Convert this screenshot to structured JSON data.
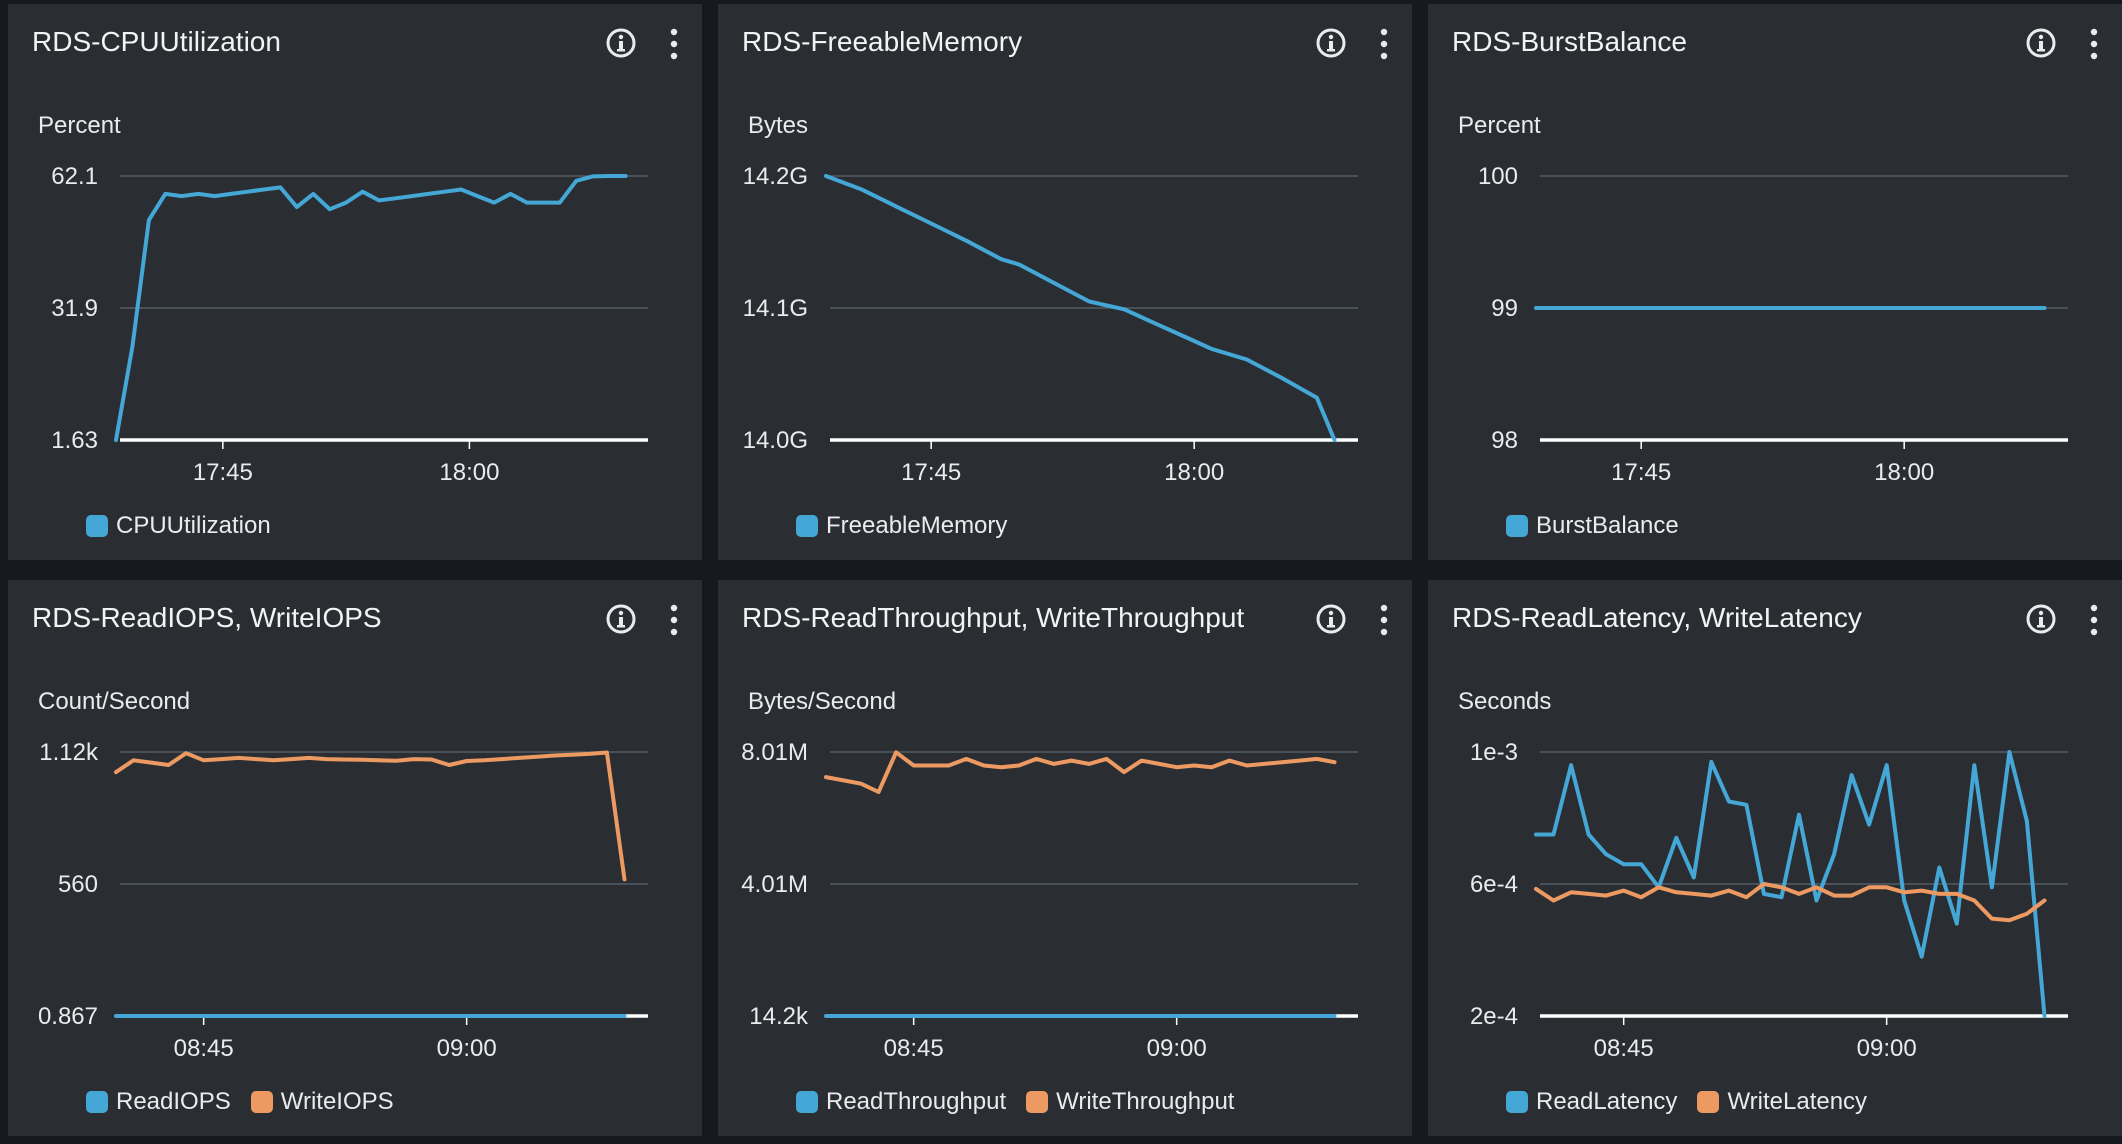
{
  "colors": {
    "background": "#16191f",
    "panel": "#2a2e33",
    "gridline": "#545b64",
    "axis": "#ffffff",
    "text": "#d5dbdb",
    "series_blue": "#44a7d6",
    "series_orange": "#ed9a62"
  },
  "icons": {
    "info": "info-circle-icon",
    "menu": "vertical-ellipsis-icon"
  },
  "chart_data": [
    {
      "type": "line",
      "title": "RDS-CPUUtilization",
      "ylabel": "Percent",
      "yticks": [
        "62.1",
        "31.9",
        "1.63"
      ],
      "ylim": [
        1.63,
        62.1
      ],
      "xlim": [
        0,
        32
      ],
      "xticks": [
        {
          "at": 6.5,
          "label": "17:45"
        },
        {
          "at": 21.5,
          "label": "18:00"
        }
      ],
      "series": [
        {
          "name": "CPUUtilization",
          "color": "#44a7d6",
          "x": [
            0,
            1,
            2,
            3,
            4,
            5,
            6,
            7,
            8,
            9,
            10,
            11,
            12,
            13,
            14,
            15,
            16,
            17,
            18,
            19,
            20,
            21,
            22,
            23,
            24,
            25,
            26,
            27,
            28,
            29,
            30,
            31
          ],
          "values": [
            1.63,
            23,
            52,
            58,
            57.5,
            58,
            57.5,
            58,
            58.5,
            59,
            59.5,
            55,
            58,
            54.5,
            56,
            58.5,
            56.5,
            57,
            57.5,
            58,
            58.5,
            59,
            57.5,
            56,
            58,
            56,
            56,
            56,
            61,
            62,
            62.1,
            62.1
          ]
        }
      ]
    },
    {
      "type": "line",
      "title": "RDS-FreeableMemory",
      "ylabel": "Bytes",
      "yticks": [
        "14.2G",
        "14.1G",
        "14.0G"
      ],
      "ylim": [
        14.0,
        14.2
      ],
      "xlim": [
        0,
        30
      ],
      "xticks": [
        {
          "at": 6,
          "label": "17:45"
        },
        {
          "at": 21,
          "label": "18:00"
        }
      ],
      "series": [
        {
          "name": "FreeableMemory",
          "color": "#44a7d6",
          "x": [
            0,
            2,
            4,
            6,
            8,
            10,
            11,
            13,
            15,
            17,
            19,
            21,
            22,
            24,
            26,
            28,
            29
          ],
          "values": [
            14.2,
            14.19,
            14.177,
            14.164,
            14.151,
            14.137,
            14.133,
            14.119,
            14.105,
            14.099,
            14.087,
            14.075,
            14.069,
            14.061,
            14.047,
            14.032,
            14.0
          ]
        }
      ]
    },
    {
      "type": "line",
      "title": "RDS-BurstBalance",
      "ylabel": "Percent",
      "yticks": [
        "100",
        "99",
        "98"
      ],
      "ylim": [
        98,
        100
      ],
      "xlim": [
        0,
        30
      ],
      "xticks": [
        {
          "at": 6,
          "label": "17:45"
        },
        {
          "at": 21,
          "label": "18:00"
        }
      ],
      "series": [
        {
          "name": "BurstBalance",
          "color": "#44a7d6",
          "x": [
            0,
            29
          ],
          "values": [
            99,
            99
          ]
        }
      ]
    },
    {
      "type": "line",
      "title": "RDS-ReadIOPS, WriteIOPS",
      "ylabel": "Count/Second",
      "yticks": [
        "1.12k",
        "560",
        "0.867"
      ],
      "ylim": [
        0.867,
        1120
      ],
      "xlim": [
        0,
        30
      ],
      "xticks": [
        {
          "at": 5,
          "label": "08:45"
        },
        {
          "at": 20,
          "label": "09:00"
        }
      ],
      "series": [
        {
          "name": "ReadIOPS",
          "color": "#44a7d6",
          "x": [
            0,
            29
          ],
          "values": [
            0.867,
            0.867
          ]
        },
        {
          "name": "WriteIOPS",
          "color": "#ed9a62",
          "x": [
            0,
            1,
            2,
            3,
            4,
            5,
            6,
            7,
            8,
            9,
            10,
            11,
            12,
            13,
            14,
            15,
            16,
            17,
            18,
            19,
            20,
            21,
            22,
            23,
            24,
            25,
            26,
            27,
            28,
            29
          ],
          "values": [
            1035,
            1085,
            1075,
            1065,
            1115,
            1085,
            1090,
            1095,
            1090,
            1085,
            1090,
            1095,
            1090,
            1088,
            1087,
            1085,
            1083,
            1090,
            1088,
            1065,
            1082,
            1085,
            1090,
            1095,
            1100,
            1105,
            1108,
            1112,
            1118,
            580
          ]
        }
      ]
    },
    {
      "type": "line",
      "title": "RDS-ReadThroughput, WriteThroughput",
      "ylabel": "Bytes/Second",
      "yticks": [
        "8.01M",
        "4.01M",
        "14.2k"
      ],
      "ylim": [
        0.0142,
        8.01
      ],
      "xlim": [
        0,
        30
      ],
      "xticks": [
        {
          "at": 5,
          "label": "08:45"
        },
        {
          "at": 20,
          "label": "09:00"
        }
      ],
      "series": [
        {
          "name": "ReadThroughput",
          "color": "#44a7d6",
          "x": [
            0,
            29
          ],
          "values": [
            0.0142,
            0.0142
          ]
        },
        {
          "name": "WriteThroughput",
          "color": "#ed9a62",
          "x": [
            0,
            1,
            2,
            3,
            4,
            5,
            6,
            7,
            8,
            9,
            10,
            11,
            12,
            13,
            14,
            15,
            16,
            17,
            18,
            19,
            20,
            21,
            22,
            23,
            24,
            25,
            26,
            27,
            28,
            29
          ],
          "values": [
            7.25,
            7.15,
            7.05,
            6.8,
            8.0,
            7.6,
            7.6,
            7.6,
            7.8,
            7.6,
            7.55,
            7.6,
            7.8,
            7.65,
            7.75,
            7.65,
            7.8,
            7.4,
            7.75,
            7.65,
            7.55,
            7.6,
            7.55,
            7.75,
            7.6,
            7.65,
            7.7,
            7.75,
            7.8,
            7.7
          ]
        }
      ]
    },
    {
      "type": "line",
      "title": "RDS-ReadLatency, WriteLatency",
      "ylabel": "Seconds",
      "yticks": [
        "1e-3",
        "6e-4",
        "2e-4"
      ],
      "ylim": [
        0.0002,
        0.001
      ],
      "xlim": [
        0,
        30
      ],
      "xticks": [
        {
          "at": 5,
          "label": "08:45"
        },
        {
          "at": 20,
          "label": "09:00"
        }
      ],
      "series": [
        {
          "name": "ReadLatency",
          "color": "#44a7d6",
          "x": [
            0,
            1,
            2,
            3,
            4,
            5,
            6,
            7,
            8,
            9,
            10,
            11,
            12,
            13,
            14,
            15,
            16,
            17,
            18,
            19,
            20,
            21,
            22,
            23,
            24,
            25,
            26,
            27,
            28,
            29
          ],
          "values": [
            0.00075,
            0.00075,
            0.00096,
            0.00075,
            0.00069,
            0.00066,
            0.00066,
            0.00059,
            0.00074,
            0.00062,
            0.00097,
            0.00085,
            0.00084,
            0.00057,
            0.00056,
            0.00081,
            0.00055,
            0.00069,
            0.00093,
            0.00078,
            0.00096,
            0.00055,
            0.00038,
            0.00065,
            0.00048,
            0.00096,
            0.00059,
            0.001,
            0.00079,
            0.0002
          ]
        },
        {
          "name": "WriteLatency",
          "color": "#ed9a62",
          "x": [
            0,
            1,
            2,
            3,
            4,
            5,
            6,
            7,
            8,
            9,
            10,
            11,
            12,
            13,
            14,
            15,
            16,
            17,
            18,
            19,
            20,
            21,
            22,
            23,
            24,
            25,
            26,
            27,
            28,
            29
          ],
          "values": [
            0.000585,
            0.00055,
            0.000575,
            0.00057,
            0.000565,
            0.00058,
            0.00056,
            0.00059,
            0.000575,
            0.00057,
            0.000565,
            0.00058,
            0.00056,
            0.0006,
            0.00059,
            0.00057,
            0.00059,
            0.000565,
            0.000565,
            0.00059,
            0.00059,
            0.000575,
            0.00058,
            0.00057,
            0.00057,
            0.00055,
            0.000495,
            0.00049,
            0.00051,
            0.00055
          ]
        }
      ]
    }
  ]
}
